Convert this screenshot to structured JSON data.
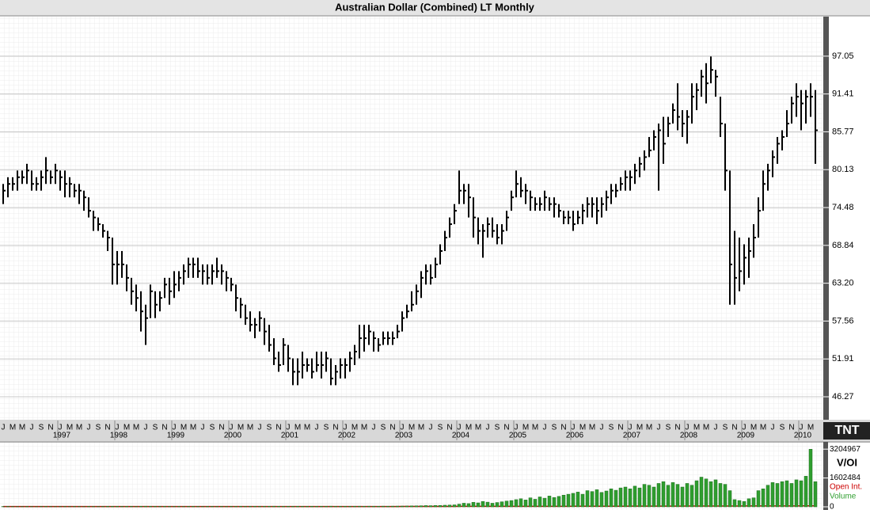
{
  "logo": "TNT",
  "chart_data": [
    {
      "type": "ohlc",
      "title": "Australian Dollar (Combined) LT Monthly",
      "categories": [
        "J",
        null,
        "M",
        null,
        "M",
        null,
        "J",
        null,
        "S",
        null,
        "N",
        null,
        "J",
        null,
        "M",
        null,
        "M",
        null,
        "J",
        null,
        "S",
        null,
        "N",
        null,
        "J",
        null,
        "M",
        null,
        "M",
        null,
        "J",
        null,
        "S",
        null,
        "N",
        null,
        "J",
        null,
        "M",
        null,
        "M",
        null,
        "J",
        null,
        "S",
        null,
        "N",
        null,
        "J",
        null,
        "M",
        null,
        "M",
        null,
        "J",
        null,
        "S",
        null,
        "N",
        null,
        "J",
        null,
        "M",
        null,
        "M",
        null,
        "J",
        null,
        "S",
        null,
        "N",
        null,
        "J",
        null,
        "M",
        null,
        "M",
        null,
        "J",
        null,
        "S",
        null,
        "N",
        null,
        "J",
        null,
        "M",
        null,
        "M",
        null,
        "J",
        null,
        "S",
        null,
        "N",
        null,
        "J",
        null,
        "M",
        null,
        "M",
        null,
        "J",
        null,
        "S",
        null,
        "N",
        null,
        "J",
        null,
        "M",
        null,
        "M",
        null,
        "J",
        null,
        "S",
        null,
        "N",
        null,
        "J",
        null,
        "M",
        null,
        "M",
        null,
        "J",
        null,
        "S",
        null,
        "N",
        null,
        "J",
        null,
        "M",
        null,
        "M",
        null,
        "J",
        null,
        "S",
        null,
        "N",
        null,
        "J",
        null,
        "M",
        null,
        "M",
        null,
        "J",
        null,
        "S",
        null,
        "N",
        null,
        "J",
        null,
        "M",
        null,
        "M",
        null,
        "J",
        null,
        "S",
        null,
        "N",
        null,
        "J",
        null,
        "M",
        null
      ],
      "year_labels": [
        "1997",
        "1998",
        "1999",
        "2000",
        "2001",
        "2002",
        "2003",
        "2004",
        "2005",
        "2006",
        "2007",
        "2008",
        "2009",
        "2010"
      ],
      "color": "#000000",
      "high": [
        78,
        79,
        79,
        80,
        80,
        81,
        80,
        79,
        80,
        82,
        80,
        81,
        80,
        80,
        79,
        78,
        78,
        77,
        76,
        74,
        73,
        72,
        71,
        70,
        68,
        68,
        66,
        64,
        63,
        62,
        60,
        63,
        62,
        62,
        64,
        64,
        65,
        65,
        66,
        67,
        67,
        67,
        66,
        66,
        66,
        67,
        66,
        65,
        64,
        63,
        61,
        60,
        59,
        58,
        59,
        58,
        57,
        55,
        53,
        55,
        54,
        52,
        52,
        53,
        52,
        52,
        53,
        53,
        53,
        52,
        51,
        52,
        52,
        53,
        54,
        57,
        57,
        57,
        56,
        55,
        56,
        56,
        56,
        57,
        59,
        60,
        62,
        63,
        65,
        66,
        66,
        67,
        69,
        71,
        73,
        75,
        80,
        78,
        78,
        76,
        73,
        72,
        73,
        73,
        72,
        72,
        74,
        77,
        80,
        79,
        78,
        77,
        76,
        76,
        77,
        76,
        76,
        75,
        74,
        74,
        74,
        74,
        75,
        76,
        76,
        76,
        76,
        77,
        78,
        78,
        79,
        80,
        80,
        81,
        82,
        83,
        85,
        86,
        87,
        88,
        88,
        90,
        93,
        89,
        89,
        93,
        93,
        95,
        96,
        97,
        95,
        91,
        87,
        80,
        71,
        70,
        69,
        70,
        72,
        76,
        80,
        81,
        83,
        85,
        86,
        89,
        91,
        93,
        92,
        92,
        93,
        92
      ],
      "low": [
        75,
        76,
        77,
        77,
        78,
        78,
        77,
        77,
        77,
        78,
        78,
        78,
        77,
        76,
        76,
        76,
        75,
        74,
        73,
        71,
        71,
        70,
        68,
        63,
        63,
        64,
        62,
        60,
        59,
        56,
        54,
        58,
        58,
        59,
        61,
        60,
        61,
        62,
        63,
        64,
        64,
        64,
        63,
        63,
        63,
        64,
        63,
        62,
        62,
        59,
        58,
        57,
        56,
        55,
        56,
        54,
        53,
        51,
        50,
        51,
        50,
        48,
        48,
        49,
        50,
        49,
        50,
        49,
        50,
        48,
        48,
        49,
        49,
        50,
        51,
        52,
        53,
        54,
        53,
        53,
        54,
        54,
        54,
        55,
        56,
        58,
        59,
        60,
        61,
        63,
        63,
        64,
        66,
        68,
        70,
        72,
        75,
        75,
        73,
        70,
        69,
        67,
        70,
        70,
        69,
        69,
        71,
        74,
        76,
        76,
        75,
        74,
        74,
        74,
        74,
        74,
        73,
        73,
        72,
        72,
        71,
        72,
        72,
        73,
        73,
        72,
        73,
        74,
        75,
        76,
        77,
        77,
        77,
        78,
        79,
        80,
        82,
        83,
        77,
        81,
        85,
        87,
        86,
        85,
        84,
        87,
        89,
        91,
        90,
        93,
        91,
        85,
        77,
        60,
        60,
        62,
        63,
        64,
        67,
        70,
        74,
        77,
        79,
        81,
        83,
        85,
        87,
        88,
        86,
        87,
        88,
        81
      ],
      "close": [
        77,
        78,
        78,
        79,
        79,
        80,
        78,
        78,
        79,
        80,
        79,
        80,
        79,
        78,
        78,
        77,
        77,
        76,
        74,
        73,
        72,
        71,
        70,
        66,
        66,
        66,
        64,
        62,
        61,
        59,
        58,
        62,
        60,
        61,
        63,
        62,
        63,
        64,
        65,
        66,
        66,
        65,
        65,
        64,
        65,
        65,
        65,
        64,
        63,
        61,
        60,
        58,
        57,
        57,
        58,
        56,
        54,
        52,
        51,
        54,
        52,
        50,
        50,
        51,
        51,
        50,
        51,
        51,
        52,
        49,
        50,
        51,
        51,
        52,
        53,
        55,
        55,
        56,
        55,
        54,
        55,
        55,
        55,
        56,
        58,
        59,
        60,
        62,
        64,
        65,
        64,
        66,
        68,
        70,
        72,
        74,
        77,
        77,
        76,
        73,
        71,
        71,
        72,
        71,
        70,
        71,
        73,
        76,
        78,
        77,
        77,
        76,
        75,
        75,
        76,
        75,
        75,
        74,
        73,
        73,
        72,
        73,
        74,
        75,
        75,
        74,
        75,
        76,
        77,
        77,
        78,
        79,
        79,
        80,
        81,
        82,
        83,
        85,
        86,
        84,
        87,
        89,
        88,
        87,
        88,
        91,
        92,
        94,
        93,
        95,
        94,
        87,
        80,
        66,
        64,
        65,
        67,
        68,
        70,
        74,
        78,
        80,
        82,
        84,
        85,
        87,
        90,
        91,
        90,
        91,
        91,
        86
      ],
      "ylim": [
        42.85,
        102.94
      ],
      "yticks": [
        46.27,
        51.91,
        57.56,
        {
          "value": 63.2,
          "label": "63.20"
        },
        68.84,
        74.48,
        80.13,
        85.77,
        91.41,
        97.05
      ]
    },
    {
      "type": "bar",
      "axis_title": "V/OI",
      "ylim": [
        0,
        3520000
      ],
      "yticks": [
        0,
        1602484,
        3204967
      ],
      "series": [
        {
          "name": "Open Int.",
          "type": "line",
          "color": "#cc0000",
          "values": [
            15000,
            15000,
            15000,
            15000,
            15000,
            15000,
            15000,
            15000,
            15000,
            15000,
            15000,
            15000,
            15000,
            15000,
            15000,
            15000,
            15000,
            15000,
            15000,
            15000,
            15000,
            15000,
            15000,
            15000,
            15000,
            15000,
            15000,
            15000,
            15000,
            15000,
            15000,
            15000,
            15000,
            15000,
            15000,
            15000,
            15000,
            15000,
            15000,
            15000,
            15000,
            15000,
            15000,
            15000,
            15000,
            15000,
            15000,
            15000,
            15000,
            15000,
            15000,
            15000,
            15000,
            15000,
            15000,
            15000,
            15000,
            15000,
            15000,
            15000,
            15000,
            15000,
            15000,
            15000,
            15000,
            15000,
            15000,
            15000,
            15000,
            15000,
            15000,
            15000,
            15000,
            15000,
            15000,
            15000,
            15000,
            15000,
            15000,
            15000,
            15000,
            15000,
            15000,
            15000,
            20000,
            20000,
            20000,
            20000,
            20000,
            20000,
            20000,
            20000,
            20000,
            20000,
            20000,
            20000,
            25000,
            25000,
            25000,
            25000,
            25000,
            25000,
            25000,
            25000,
            25000,
            25000,
            25000,
            25000,
            30000,
            30000,
            30000,
            30000,
            30000,
            30000,
            30000,
            30000,
            30000,
            30000,
            30000,
            30000,
            35000,
            35000,
            35000,
            35000,
            35000,
            35000,
            35000,
            35000,
            35000,
            35000,
            35000,
            35000,
            40000,
            40000,
            40000,
            40000,
            40000,
            40000,
            40000,
            40000,
            40000,
            40000,
            40000,
            40000,
            45000,
            45000,
            45000,
            45000,
            45000,
            45000,
            45000,
            45000,
            45000,
            45000,
            45000,
            45000,
            50000,
            50000,
            50000,
            50000,
            50000,
            50000,
            50000,
            50000,
            50000,
            50000,
            50000,
            50000,
            55000,
            55000,
            55000,
            55000
          ]
        },
        {
          "name": "Volume",
          "type": "bar",
          "color": "#2f9e2f",
          "values": [
            20000,
            25000,
            22000,
            18000,
            20000,
            24000,
            21000,
            19000,
            23000,
            26000,
            22000,
            20000,
            22000,
            24000,
            21000,
            25000,
            23000,
            20000,
            26000,
            24000,
            22000,
            25000,
            28000,
            30000,
            28000,
            26000,
            30000,
            27000,
            25000,
            32000,
            35000,
            30000,
            28000,
            26000,
            29000,
            27000,
            25000,
            27000,
            24000,
            26000,
            28000,
            25000,
            23000,
            26000,
            27000,
            24000,
            26000,
            25000,
            26000,
            28000,
            30000,
            27000,
            29000,
            31000,
            28000,
            30000,
            33000,
            35000,
            32000,
            30000,
            31000,
            29000,
            33000,
            30000,
            28000,
            32000,
            30000,
            29000,
            34000,
            36000,
            31000,
            30000,
            32000,
            30000,
            34000,
            35000,
            33000,
            36000,
            34000,
            32000,
            37000,
            35000,
            38000,
            40000,
            40000,
            45000,
            50000,
            55000,
            60000,
            70000,
            65000,
            75000,
            80000,
            90000,
            100000,
            110000,
            150000,
            200000,
            180000,
            250000,
            220000,
            300000,
            260000,
            200000,
            240000,
            280000,
            320000,
            350000,
            400000,
            450000,
            380000,
            500000,
            420000,
            550000,
            480000,
            600000,
            520000,
            580000,
            650000,
            700000,
            750000,
            820000,
            700000,
            900000,
            850000,
            950000,
            800000,
            880000,
            1000000,
            920000,
            1050000,
            1100000,
            1000000,
            1150000,
            1050000,
            1250000,
            1200000,
            1100000,
            1300000,
            1400000,
            1200000,
            1350000,
            1250000,
            1100000,
            1300000,
            1200000,
            1450000,
            1650000,
            1550000,
            1400000,
            1500000,
            1300000,
            1250000,
            900000,
            400000,
            350000,
            300000,
            450000,
            500000,
            900000,
            1000000,
            1200000,
            1350000,
            1300000,
            1400000,
            1450000,
            1300000,
            1500000,
            1450000,
            1700000,
            3200000,
            1400000
          ]
        }
      ]
    }
  ]
}
